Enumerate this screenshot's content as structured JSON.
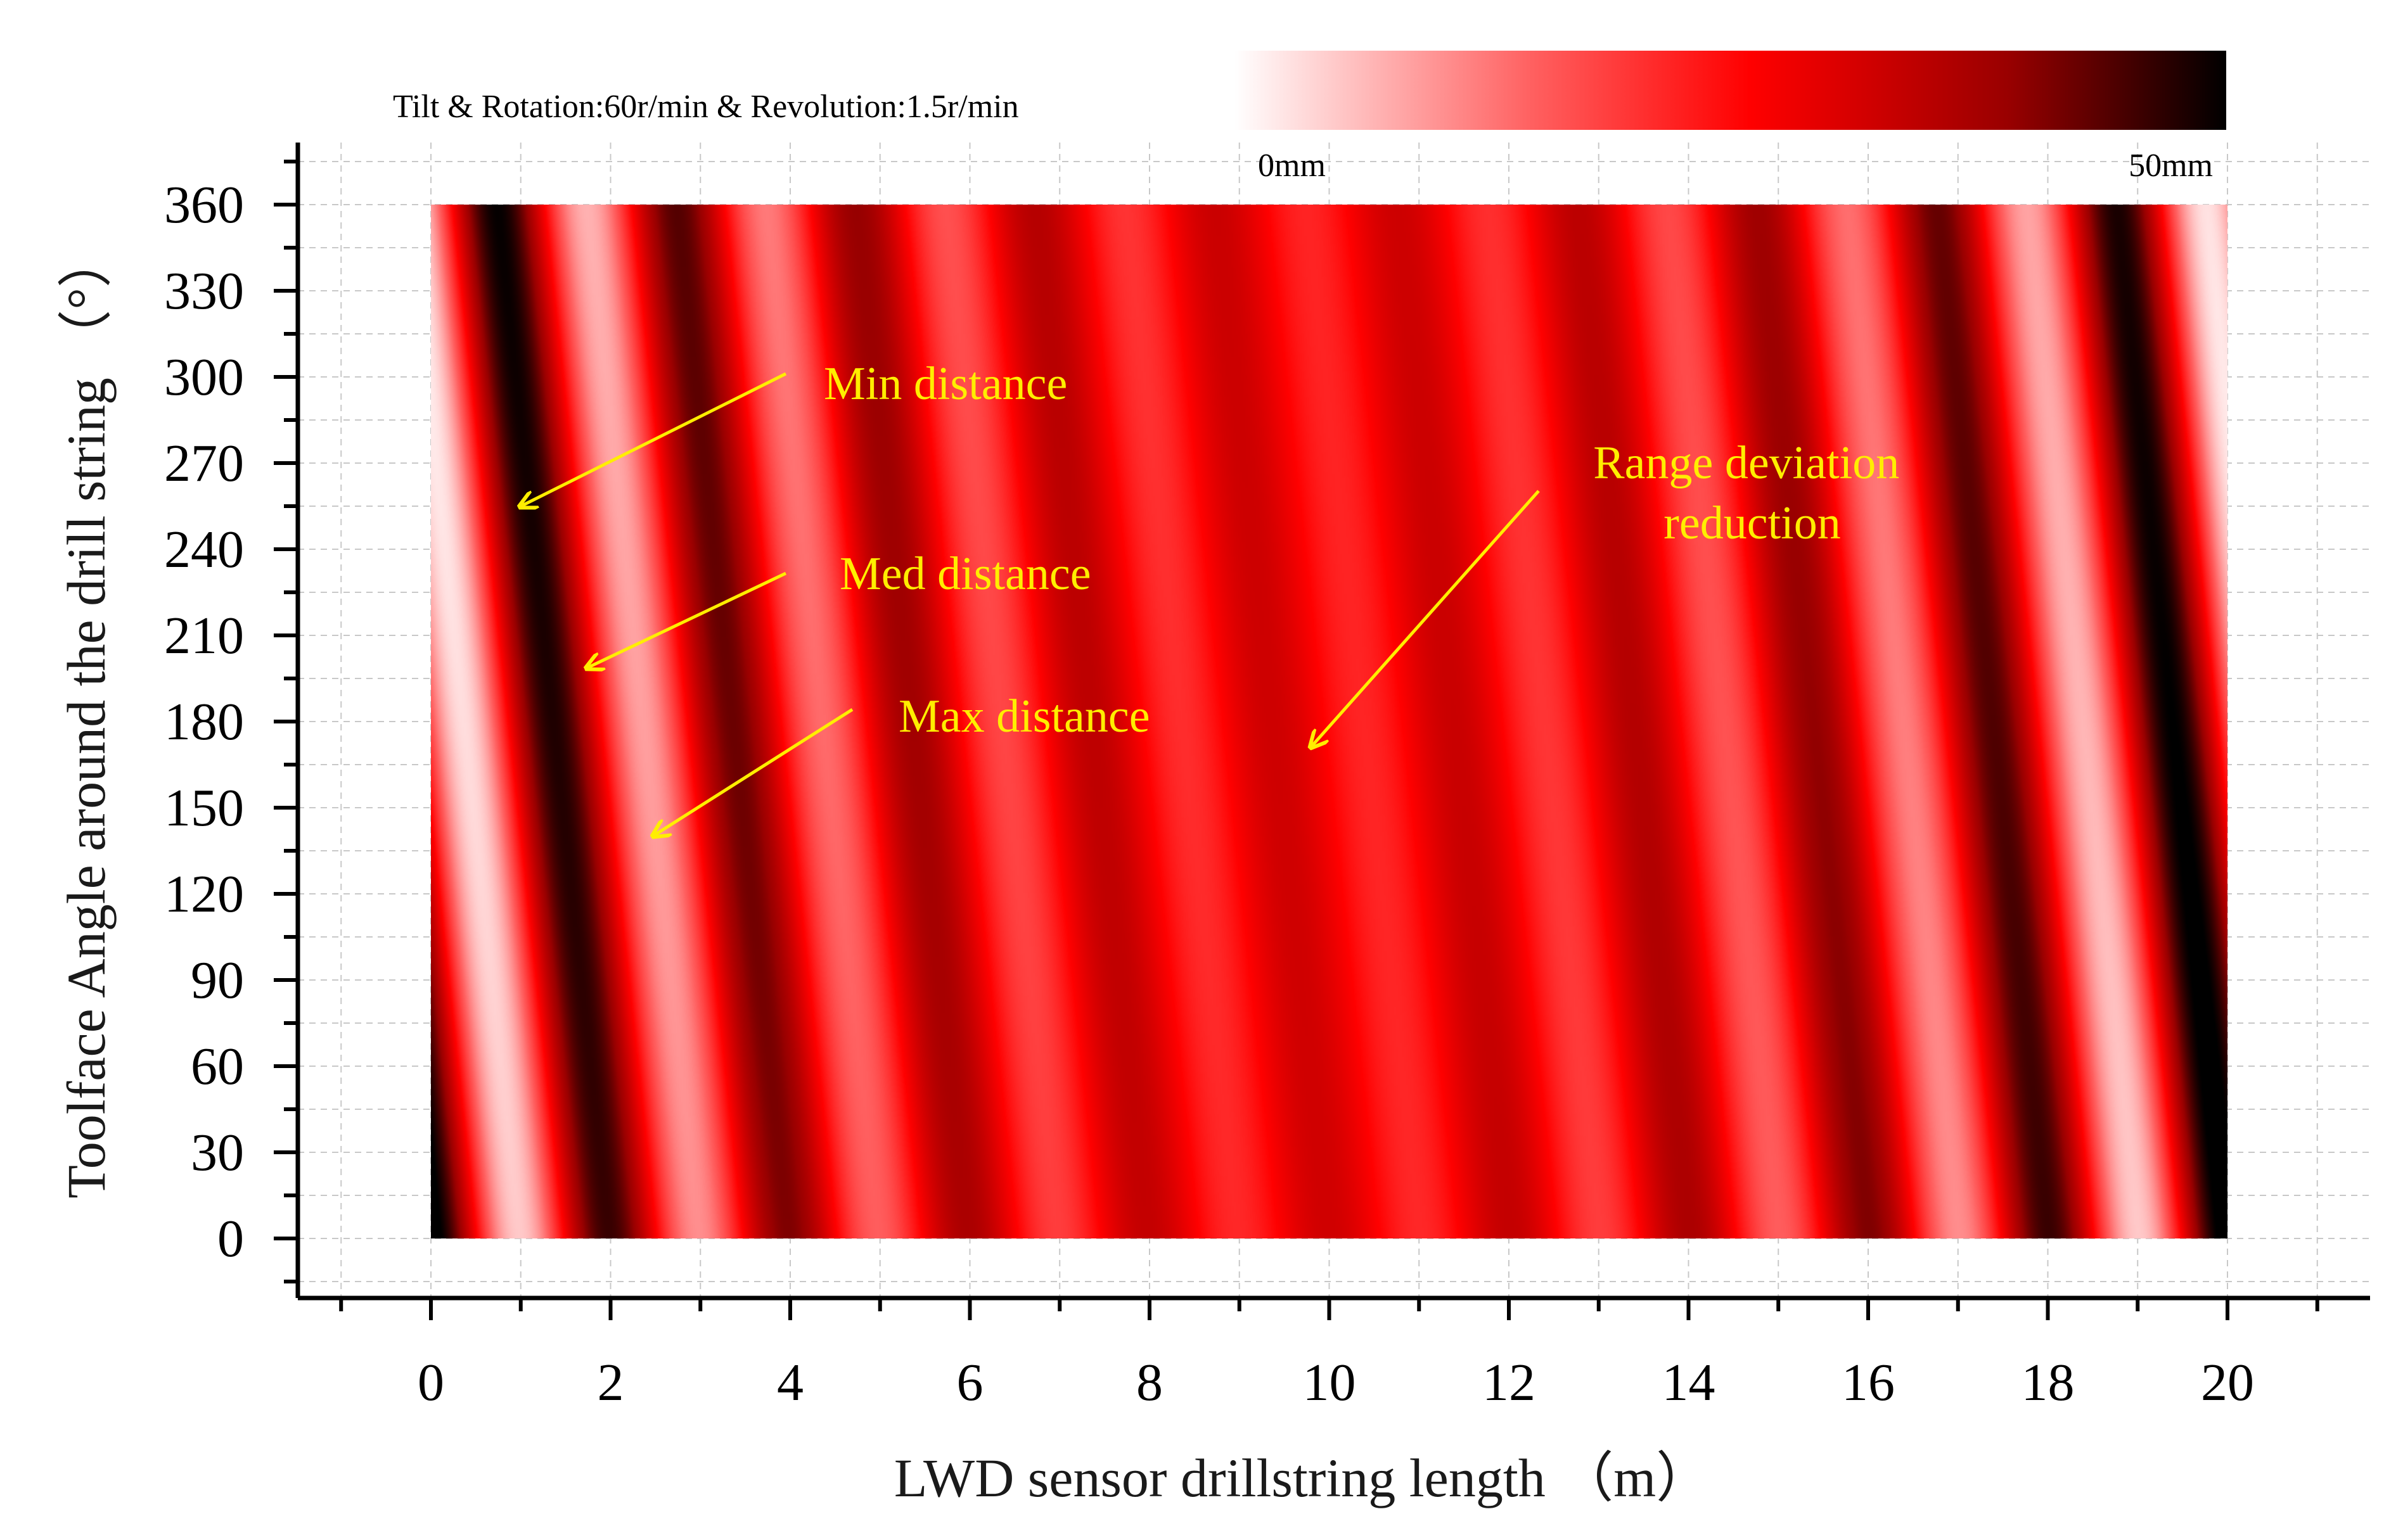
{
  "chart_data": {
    "type": "heatmap",
    "title": "Tilt & Rotation:60r/min & Revolution:1.5r/min",
    "xlabel": "LWD sensor drillstring length （m）",
    "ylabel": "Toolface Angle around the drill string （°）",
    "xlim": [
      -1.5,
      21
    ],
    "ylim": [
      -15,
      375
    ],
    "x_ticks": [
      0,
      2,
      4,
      6,
      8,
      10,
      12,
      14,
      16,
      18,
      20
    ],
    "x_tick_labels": [
      "0",
      "2",
      "4",
      "6",
      "8",
      "10",
      "12",
      "14",
      "16",
      "18",
      "20"
    ],
    "y_ticks": [
      0,
      30,
      60,
      90,
      120,
      150,
      180,
      210,
      240,
      270,
      300,
      330,
      360
    ],
    "y_tick_labels": [
      "0",
      "30",
      "60",
      "90",
      "120",
      "150",
      "180",
      "210",
      "240",
      "270",
      "300",
      "330",
      "360"
    ],
    "x_range": [
      0,
      20
    ],
    "y_range": [
      0,
      360
    ],
    "grid": true,
    "colorbar": {
      "min_label": "0mm",
      "max_label": "50mm",
      "min": 0,
      "max": 50,
      "colors": [
        "#ffffff",
        "#ff6060",
        "#ff0000",
        "#990000",
        "#000000"
      ]
    },
    "field": {
      "description_units": "mm",
      "band_period_x_m": 2.0,
      "band_slope_x_per_360deg": 1.25,
      "peak_amplitude_at_ends": 25,
      "mid_amplitude": 5,
      "center_value": 27
    },
    "annotations": [
      {
        "label": "Min distance",
        "arrow_to": [
          1.0,
          252
        ]
      },
      {
        "label": "Med distance",
        "arrow_to": [
          1.7,
          197
        ]
      },
      {
        "label": "Max distance",
        "arrow_to": [
          2.4,
          138
        ]
      },
      {
        "label": "Range deviation\nreduction",
        "arrow_to": [
          9.8,
          168
        ]
      }
    ],
    "annotation_color": "#ffee00"
  }
}
